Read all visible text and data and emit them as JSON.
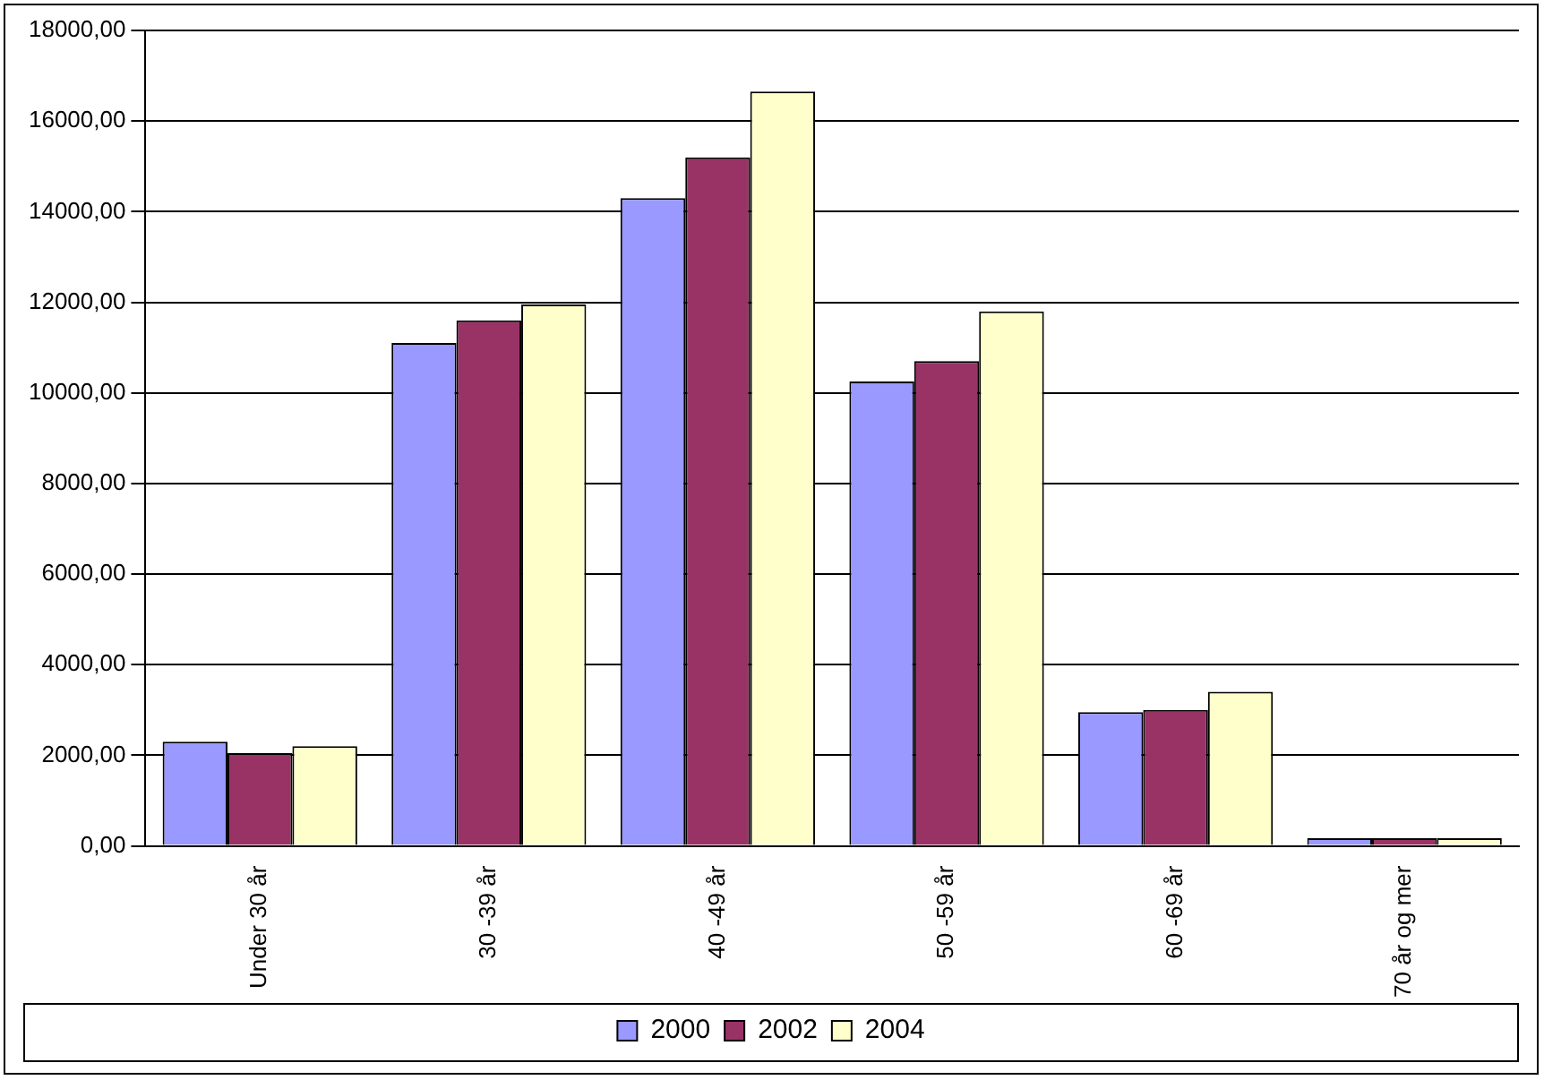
{
  "chart_data": {
    "type": "bar",
    "categories": [
      "Under 30 år",
      "30 -39 år",
      "40 -49 år",
      "50 -59 år",
      "60 -69 år",
      "70 år og mer"
    ],
    "series": [
      {
        "name": "2000",
        "color": "#9999ff",
        "values": [
          2300,
          11100,
          14300,
          10250,
          2950,
          170
        ]
      },
      {
        "name": "2002",
        "color": "#993366",
        "values": [
          2050,
          11600,
          15200,
          10700,
          3000,
          170
        ]
      },
      {
        "name": "2004",
        "color": "#ffffcc",
        "values": [
          2200,
          11950,
          16650,
          11800,
          3400,
          170
        ]
      }
    ],
    "ylim": [
      0,
      18000
    ],
    "yticks": [
      {
        "value": 0,
        "label": "0,00"
      },
      {
        "value": 2000,
        "label": "2000,00"
      },
      {
        "value": 4000,
        "label": "4000,00"
      },
      {
        "value": 6000,
        "label": "6000,00"
      },
      {
        "value": 8000,
        "label": "8000,00"
      },
      {
        "value": 10000,
        "label": "10000,00"
      },
      {
        "value": 12000,
        "label": "12000,00"
      },
      {
        "value": 14000,
        "label": "14000,00"
      },
      {
        "value": 16000,
        "label": "16000,00"
      },
      {
        "value": 18000,
        "label": "18000,00"
      }
    ],
    "grid": "y",
    "legend": "bottom"
  }
}
